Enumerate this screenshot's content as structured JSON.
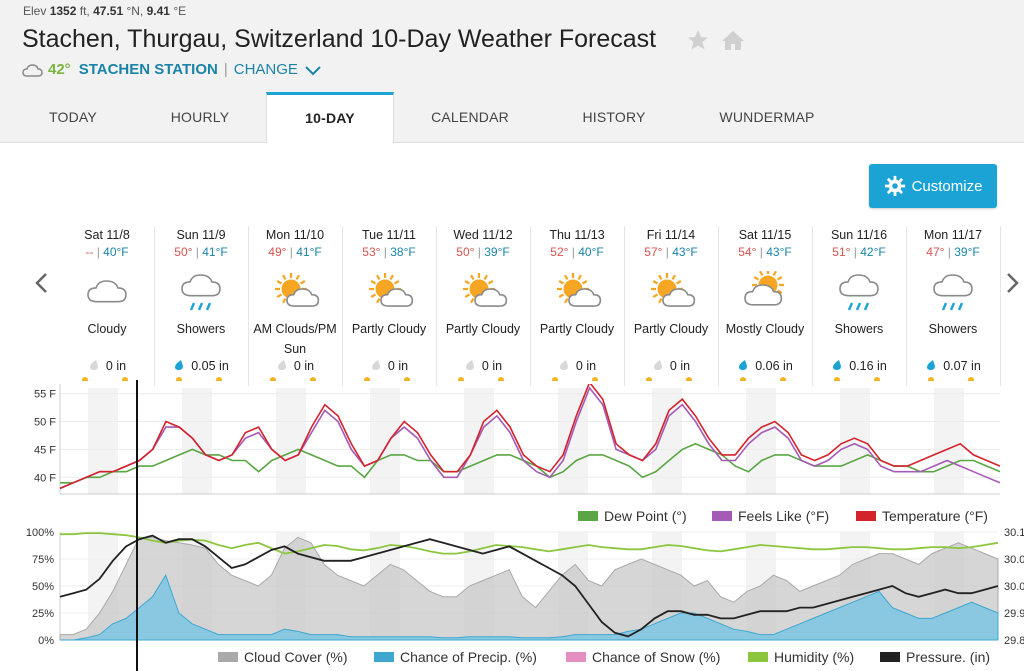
{
  "header": {
    "elev_label": "Elev",
    "elev_value": "1352",
    "elev_unit": "ft,",
    "lat": "47.51",
    "lat_unit": "°N,",
    "lon": "9.41",
    "lon_unit": "°E",
    "title": "Stachen, Thurgau, Switzerland 10-Day Weather Forecast",
    "current_temp": "42°",
    "station": "STACHEN STATION",
    "change_label": "CHANGE"
  },
  "tabs": [
    {
      "label": "TODAY"
    },
    {
      "label": "HOURLY"
    },
    {
      "label": "10-DAY"
    },
    {
      "label": "CALENDAR"
    },
    {
      "label": "HISTORY"
    },
    {
      "label": "WUNDERMAP"
    }
  ],
  "customize_label": "Customize",
  "days": [
    {
      "date": "Sat 11/8",
      "hi": "--",
      "lo": "40°F",
      "condition": "Cloudy",
      "precip": "0 in",
      "icon": "cloud-icon"
    },
    {
      "date": "Sun 11/9",
      "hi": "50°",
      "lo": "41°F",
      "condition": "Showers",
      "precip": "0.05 in",
      "icon": "showers-icon"
    },
    {
      "date": "Mon 11/10",
      "hi": "49°",
      "lo": "41°F",
      "condition": "AM Clouds/PM Sun",
      "precip": "0 in",
      "icon": "partly-cloudy-icon"
    },
    {
      "date": "Tue 11/11",
      "hi": "53°",
      "lo": "38°F",
      "condition": "Partly Cloudy",
      "precip": "0 in",
      "icon": "partly-cloudy-icon"
    },
    {
      "date": "Wed 11/12",
      "hi": "50°",
      "lo": "39°F",
      "condition": "Partly Cloudy",
      "precip": "0 in",
      "icon": "partly-cloudy-icon"
    },
    {
      "date": "Thu 11/13",
      "hi": "52°",
      "lo": "40°F",
      "condition": "Partly Cloudy",
      "precip": "0 in",
      "icon": "partly-cloudy-icon"
    },
    {
      "date": "Fri 11/14",
      "hi": "57°",
      "lo": "43°F",
      "condition": "Partly Cloudy",
      "precip": "0 in",
      "icon": "partly-cloudy-icon"
    },
    {
      "date": "Sat 11/15",
      "hi": "54°",
      "lo": "43°F",
      "condition": "Mostly Cloudy",
      "precip": "0.06 in",
      "icon": "mostly-cloudy-icon"
    },
    {
      "date": "Sun 11/16",
      "hi": "51°",
      "lo": "42°F",
      "condition": "Showers",
      "precip": "0.16 in",
      "icon": "showers-icon"
    },
    {
      "date": "Mon 11/17",
      "hi": "47°",
      "lo": "39°F",
      "condition": "Showers",
      "precip": "0.07 in",
      "icon": "showers-icon"
    }
  ],
  "chart_data": [
    {
      "type": "line",
      "y_ticks": [
        "55 F",
        "50 F",
        "45 F",
        "40 F"
      ],
      "ylim": [
        37,
        56
      ],
      "series": [
        {
          "name": "Dew Point (°)",
          "color": "#5aa544",
          "values": [
            39,
            39,
            40,
            40,
            41,
            41,
            42,
            42,
            43,
            44,
            45,
            44,
            44,
            43,
            43,
            41,
            43,
            44,
            45,
            44,
            43,
            42,
            42,
            40,
            43,
            44,
            44,
            43,
            43,
            41,
            41,
            42,
            43,
            44,
            44,
            43,
            42,
            40,
            41,
            43,
            44,
            44,
            43,
            42,
            40,
            41,
            43,
            45,
            46,
            45,
            44,
            42,
            41,
            43,
            44,
            44,
            43,
            42,
            42,
            42,
            43,
            44,
            43,
            42,
            42,
            41,
            41,
            42,
            43,
            43,
            42,
            41
          ]
        },
        {
          "name": "Feels Like (°F)",
          "color": "#a55ab5",
          "values": [
            38,
            39,
            40,
            41,
            41,
            42,
            43,
            45,
            49,
            49,
            47,
            44,
            43,
            44,
            47,
            48,
            45,
            43,
            44,
            48,
            52,
            50,
            45,
            42,
            43,
            47,
            49,
            47,
            43,
            40,
            40,
            44,
            49,
            51,
            48,
            43,
            41,
            40,
            43,
            50,
            56,
            53,
            45,
            44,
            43,
            45,
            51,
            53,
            50,
            46,
            43,
            43,
            46,
            48,
            49,
            47,
            43,
            42,
            43,
            45,
            46,
            45,
            42,
            41,
            41,
            41,
            42,
            43,
            42,
            41,
            40,
            39
          ]
        },
        {
          "name": "Temperature (°F)",
          "color": "#d3232b",
          "values": [
            38,
            39,
            40,
            41,
            41,
            42,
            43,
            45,
            50,
            49,
            47,
            44,
            43,
            44,
            48,
            49,
            45,
            43,
            44,
            49,
            53,
            51,
            46,
            42,
            43,
            47,
            50,
            48,
            44,
            41,
            41,
            44,
            50,
            52,
            49,
            44,
            42,
            41,
            44,
            51,
            57,
            54,
            46,
            44,
            43,
            46,
            52,
            54,
            51,
            47,
            44,
            44,
            47,
            49,
            50,
            48,
            44,
            43,
            44,
            46,
            47,
            46,
            43,
            42,
            42,
            43,
            44,
            45,
            46,
            44,
            43,
            42
          ]
        }
      ]
    },
    {
      "type": "area",
      "y_ticks": [
        "100%",
        "75%",
        "50%",
        "25%",
        "0%"
      ],
      "y2_ticks": [
        "30.1",
        "30.0",
        "30.0",
        "29.9",
        "29.8"
      ],
      "ylim": [
        0,
        100
      ],
      "series": [
        {
          "name": "Cloud Cover (%)",
          "color": "#b0b0b0",
          "values": [
            5,
            5,
            10,
            25,
            45,
            70,
            95,
            95,
            92,
            90,
            88,
            85,
            70,
            60,
            55,
            50,
            60,
            85,
            95,
            90,
            70,
            60,
            55,
            50,
            60,
            70,
            65,
            55,
            45,
            40,
            40,
            50,
            55,
            60,
            65,
            40,
            30,
            45,
            60,
            70,
            55,
            50,
            65,
            70,
            75,
            70,
            65,
            60,
            50,
            55,
            40,
            35,
            45,
            50,
            60,
            55,
            45,
            50,
            55,
            60,
            70,
            75,
            80,
            80,
            75,
            70,
            80,
            85,
            90,
            85,
            80,
            75
          ]
        },
        {
          "name": "Chance of Precip. (%)",
          "color": "#3fa7cf",
          "values": [
            0,
            0,
            2,
            5,
            15,
            20,
            30,
            40,
            60,
            25,
            15,
            10,
            5,
            5,
            5,
            5,
            5,
            10,
            8,
            5,
            5,
            5,
            3,
            3,
            3,
            3,
            3,
            3,
            3,
            2,
            2,
            3,
            3,
            3,
            3,
            2,
            2,
            2,
            3,
            5,
            5,
            5,
            5,
            8,
            10,
            15,
            20,
            25,
            25,
            20,
            15,
            10,
            8,
            5,
            5,
            10,
            15,
            20,
            25,
            30,
            35,
            40,
            45,
            30,
            25,
            20,
            20,
            25,
            30,
            35,
            30,
            25
          ]
        },
        {
          "name": "Chance of Snow (%)",
          "color": "#e58ec0",
          "values": [
            0,
            0,
            0,
            0,
            0,
            0,
            0,
            0,
            0,
            0,
            0,
            0,
            0,
            0,
            0,
            0,
            0,
            0,
            0,
            0,
            0,
            0,
            0,
            0,
            0,
            0,
            0,
            0,
            0,
            0,
            0,
            0,
            0,
            0,
            0,
            0,
            0,
            0,
            0,
            0,
            0,
            0,
            0,
            0,
            0,
            0,
            0,
            0,
            0,
            0,
            0,
            0,
            0,
            0,
            0,
            0,
            0,
            0,
            0,
            0,
            0,
            0,
            0,
            0,
            0,
            0,
            0,
            0,
            0,
            0,
            0,
            0
          ]
        },
        {
          "name": "Humidity (%)",
          "color": "#8cc63f",
          "values": [
            98,
            98,
            99,
            99,
            98,
            97,
            95,
            92,
            90,
            92,
            93,
            92,
            88,
            85,
            88,
            90,
            85,
            80,
            82,
            85,
            88,
            87,
            84,
            83,
            85,
            88,
            87,
            85,
            82,
            80,
            80,
            82,
            85,
            88,
            87,
            86,
            84,
            82,
            84,
            86,
            88,
            86,
            85,
            84,
            84,
            86,
            88,
            87,
            85,
            83,
            82,
            84,
            86,
            88,
            87,
            86,
            85,
            84,
            84,
            85,
            86,
            86,
            85,
            84,
            84,
            85,
            86,
            86,
            85,
            86,
            88,
            90
          ]
        },
        {
          "name": "Pressure. (in)",
          "color": "#222222",
          "values": [
            29.92,
            29.93,
            29.94,
            29.97,
            30.02,
            30.06,
            30.08,
            30.09,
            30.07,
            30.08,
            30.08,
            30.06,
            30.03,
            30.0,
            30.01,
            30.03,
            30.05,
            30.06,
            30.04,
            30.03,
            30.02,
            30.02,
            30.02,
            30.03,
            30.04,
            30.05,
            30.06,
            30.07,
            30.08,
            30.07,
            30.06,
            30.05,
            30.04,
            30.05,
            30.06,
            30.04,
            30.02,
            30.0,
            29.98,
            29.95,
            29.9,
            29.85,
            29.82,
            29.81,
            29.83,
            29.86,
            29.88,
            29.88,
            29.87,
            29.87,
            29.86,
            29.86,
            29.87,
            29.88,
            29.88,
            29.88,
            29.89,
            29.89,
            29.9,
            29.91,
            29.92,
            29.93,
            29.94,
            29.95,
            29.93,
            29.92,
            29.93,
            29.94,
            29.93,
            29.93,
            29.94,
            29.95
          ]
        }
      ]
    }
  ]
}
